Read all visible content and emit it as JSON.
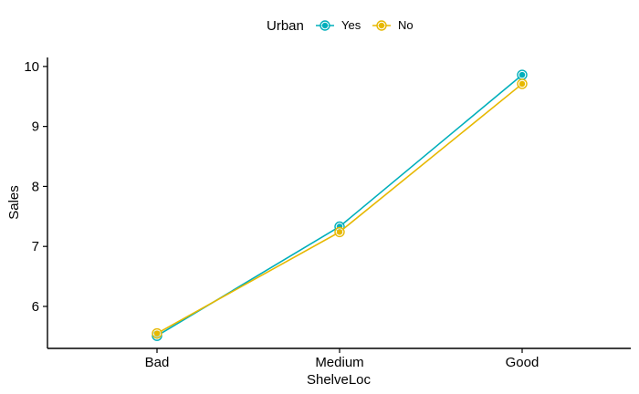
{
  "chart_data": {
    "type": "line",
    "xlabel": "ShelveLoc",
    "ylabel": "Sales",
    "categories": [
      "Bad",
      "Medium",
      "Good"
    ],
    "ylim": [
      5.3,
      10.15
    ],
    "yticks": [
      6,
      7,
      8,
      9,
      10
    ],
    "legend": {
      "title": "Urban",
      "position": "top"
    },
    "grid": false,
    "series": [
      {
        "name": "Yes",
        "color": "#00AFBB",
        "values": [
          5.51,
          7.33,
          9.86
        ]
      },
      {
        "name": "No",
        "color": "#E7B800",
        "values": [
          5.55,
          7.24,
          9.71
        ]
      }
    ]
  }
}
